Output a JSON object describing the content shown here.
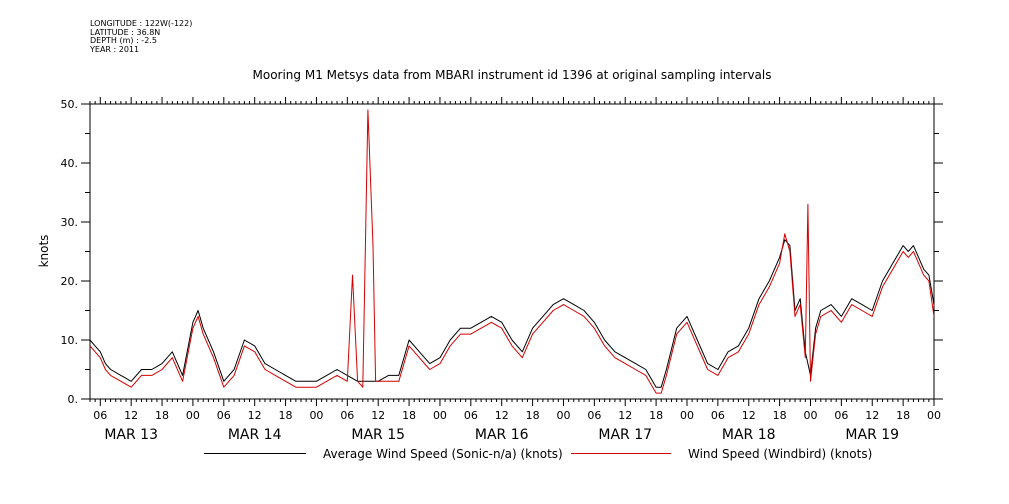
{
  "meta": {
    "longitude": "LONGITUDE : 122W(-122)",
    "latitude": "LATITUDE : 36.8N",
    "depth": "DEPTH (m) : -2.5",
    "year": "YEAR : 2011"
  },
  "chart_data": {
    "type": "line",
    "title": "Mooring M1 Metsys data from MBARI instrument id 1396 at original sampling intervals",
    "xlabel": "",
    "ylabel": "knots",
    "ylim": [
      0,
      50
    ],
    "yticks": [
      0,
      10,
      20,
      30,
      40,
      50
    ],
    "ytick_labels": [
      "0.",
      "10.",
      "20.",
      "30.",
      "40.",
      "50."
    ],
    "xlim_hours": [
      4,
      168
    ],
    "x_hour_ticks": [
      6,
      12,
      18,
      24,
      30,
      36,
      42,
      48,
      54,
      60,
      66,
      72,
      78,
      84,
      90,
      96,
      102,
      108,
      114,
      120,
      126,
      132,
      138,
      144,
      150,
      156,
      162,
      168
    ],
    "x_hour_labels": [
      "06",
      "12",
      "18",
      "00",
      "06",
      "12",
      "18",
      "00",
      "06",
      "12",
      "18",
      "00",
      "06",
      "12",
      "18",
      "00",
      "06",
      "12",
      "18",
      "00",
      "06",
      "12",
      "18",
      "00",
      "06",
      "12",
      "18",
      "00"
    ],
    "day_labels": [
      {
        "hour": 12,
        "label": "MAR 13"
      },
      {
        "hour": 36,
        "label": "MAR 14"
      },
      {
        "hour": 60,
        "label": "MAR 15"
      },
      {
        "hour": 84,
        "label": "MAR 16"
      },
      {
        "hour": 108,
        "label": "MAR 17"
      },
      {
        "hour": 132,
        "label": "MAR 18"
      },
      {
        "hour": 156,
        "label": "MAR 19"
      }
    ],
    "grid": false,
    "legend_position": "bottom",
    "series": [
      {
        "name": "Average Wind Speed (Sonic-n/a) (knots)",
        "color": "#000000",
        "x": [
          4,
          5,
          6,
          7,
          8,
          10,
          12,
          14,
          16,
          18,
          20,
          22,
          24,
          25,
          26,
          28,
          30,
          32,
          34,
          36,
          38,
          40,
          42,
          44,
          46,
          48,
          50,
          52,
          54,
          56,
          58,
          60,
          62,
          64,
          66,
          68,
          70,
          72,
          74,
          76,
          78,
          80,
          82,
          84,
          86,
          88,
          90,
          92,
          94,
          96,
          98,
          100,
          102,
          104,
          106,
          108,
          110,
          112,
          114,
          115,
          116,
          118,
          120,
          122,
          124,
          126,
          128,
          130,
          132,
          134,
          136,
          138,
          139,
          140,
          141,
          142,
          143,
          144,
          145,
          146,
          148,
          150,
          152,
          154,
          156,
          158,
          160,
          162,
          163,
          164,
          165,
          166,
          167,
          168
        ],
        "y": [
          10,
          9,
          8,
          6,
          5,
          4,
          3,
          5,
          5,
          6,
          8,
          4,
          13,
          15,
          12,
          8,
          3,
          5,
          10,
          9,
          6,
          5,
          4,
          3,
          3,
          3,
          4,
          5,
          4,
          3,
          3,
          3,
          4,
          4,
          10,
          8,
          6,
          7,
          10,
          12,
          12,
          13,
          14,
          13,
          10,
          8,
          12,
          14,
          16,
          17,
          16,
          15,
          13,
          10,
          8,
          7,
          6,
          5,
          2,
          2,
          5,
          12,
          14,
          10,
          6,
          5,
          8,
          9,
          12,
          17,
          20,
          24,
          27,
          26,
          15,
          17,
          8,
          4,
          12,
          15,
          16,
          14,
          17,
          16,
          15,
          20,
          23,
          26,
          25,
          26,
          24,
          22,
          21,
          16
        ]
      },
      {
        "name": "Wind Speed (Windbird) (knots)",
        "color": "#d40000",
        "x": [
          4,
          5,
          6,
          7,
          8,
          10,
          12,
          14,
          16,
          18,
          20,
          22,
          24,
          25,
          26,
          28,
          30,
          32,
          34,
          36,
          38,
          40,
          42,
          44,
          46,
          48,
          50,
          52,
          54,
          55,
          56,
          57,
          58,
          59,
          59.5,
          60,
          62,
          64,
          66,
          68,
          70,
          72,
          74,
          76,
          78,
          80,
          82,
          84,
          86,
          88,
          90,
          92,
          94,
          96,
          98,
          100,
          102,
          104,
          106,
          108,
          110,
          112,
          114,
          115,
          116,
          118,
          120,
          122,
          124,
          126,
          128,
          130,
          132,
          134,
          136,
          138,
          139,
          140,
          141,
          142,
          143,
          143.5,
          144,
          145,
          146,
          148,
          150,
          152,
          154,
          156,
          158,
          160,
          162,
          163,
          164,
          165,
          166,
          167,
          168
        ],
        "y": [
          9,
          8,
          7,
          5,
          4,
          3,
          2,
          4,
          4,
          5,
          7,
          3,
          12,
          14,
          11,
          7,
          2,
          4,
          9,
          8,
          5,
          4,
          3,
          2,
          2,
          2,
          3,
          4,
          3,
          21,
          3,
          2,
          49,
          26,
          3,
          3,
          3,
          3,
          9,
          7,
          5,
          6,
          9,
          11,
          11,
          12,
          13,
          12,
          9,
          7,
          11,
          13,
          15,
          16,
          15,
          14,
          12,
          9,
          7,
          6,
          5,
          4,
          1,
          1,
          4,
          11,
          13,
          9,
          5,
          4,
          7,
          8,
          11,
          16,
          19,
          23,
          28,
          25,
          14,
          16,
          7,
          33,
          3,
          11,
          14,
          15,
          13,
          16,
          15,
          14,
          19,
          22,
          25,
          24,
          25,
          23,
          21,
          20,
          14
        ]
      }
    ]
  },
  "legend": {
    "black_label": "Average Wind Speed (Sonic-n/a) (knots)",
    "red_label": "Wind Speed (Windbird) (knots)"
  }
}
